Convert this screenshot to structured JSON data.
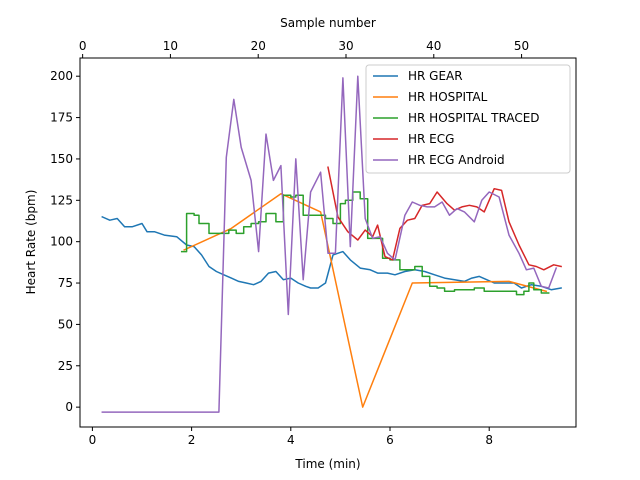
{
  "chart_data": {
    "type": "line",
    "title": "",
    "xlabel": "Time (min)",
    "ylabel": "Heart Rate (bpm)",
    "x2label": "Sample number",
    "xlim": [
      -0.25,
      9.75
    ],
    "ylim": [
      -12,
      211
    ],
    "x2lim": [
      -0.3,
      56.2
    ],
    "xticks": [
      0,
      2,
      4,
      6,
      8
    ],
    "yticks": [
      0,
      25,
      50,
      75,
      100,
      125,
      150,
      175,
      200
    ],
    "x2ticks": [
      0,
      10,
      20,
      30,
      40,
      50
    ],
    "grid": false,
    "legend_position": "top-right",
    "series": [
      {
        "name": "HR GEAR",
        "color": "#1f77b4",
        "step": false,
        "points": [
          [
            0.2,
            115
          ],
          [
            0.35,
            113
          ],
          [
            0.5,
            114
          ],
          [
            0.65,
            109
          ],
          [
            0.8,
            109
          ],
          [
            1.0,
            111
          ],
          [
            1.1,
            106
          ],
          [
            1.25,
            106
          ],
          [
            1.45,
            104
          ],
          [
            1.7,
            103
          ],
          [
            1.9,
            98
          ],
          [
            2.05,
            97
          ],
          [
            2.2,
            92
          ],
          [
            2.35,
            85
          ],
          [
            2.5,
            82
          ],
          [
            2.65,
            80
          ],
          [
            2.8,
            78
          ],
          [
            2.95,
            76
          ],
          [
            3.1,
            75
          ],
          [
            3.25,
            74
          ],
          [
            3.4,
            76
          ],
          [
            3.55,
            81
          ],
          [
            3.7,
            82
          ],
          [
            3.85,
            77
          ],
          [
            4.0,
            78
          ],
          [
            4.15,
            75
          ],
          [
            4.3,
            73
          ],
          [
            4.4,
            72
          ],
          [
            4.55,
            72
          ],
          [
            4.7,
            75
          ],
          [
            4.85,
            92
          ],
          [
            5.05,
            94
          ],
          [
            5.2,
            89
          ],
          [
            5.4,
            84
          ],
          [
            5.6,
            83
          ],
          [
            5.75,
            81
          ],
          [
            5.95,
            81
          ],
          [
            6.1,
            80
          ],
          [
            6.3,
            82
          ],
          [
            6.5,
            83
          ],
          [
            6.7,
            82
          ],
          [
            6.9,
            80
          ],
          [
            7.1,
            78
          ],
          [
            7.3,
            77
          ],
          [
            7.5,
            76
          ],
          [
            7.65,
            78
          ],
          [
            7.8,
            79
          ],
          [
            7.95,
            77
          ],
          [
            8.1,
            75
          ],
          [
            8.3,
            75
          ],
          [
            8.5,
            75
          ],
          [
            8.65,
            72
          ],
          [
            8.85,
            74
          ],
          [
            9.05,
            73
          ],
          [
            9.25,
            71
          ],
          [
            9.45,
            72
          ]
        ]
      },
      {
        "name": "HR HOSPITAL",
        "color": "#ff7f0e",
        "step": false,
        "points": [
          [
            1.85,
            95
          ],
          [
            2.8,
            108
          ],
          [
            3.8,
            129
          ],
          [
            4.6,
            118
          ],
          [
            5.45,
            0
          ],
          [
            6.45,
            75
          ],
          [
            8.4,
            76
          ],
          [
            9.15,
            70
          ]
        ]
      },
      {
        "name": "HR HOSPITAL TRACED",
        "color": "#2ca02c",
        "step": true,
        "points": [
          [
            1.8,
            94
          ],
          [
            1.9,
            117
          ],
          [
            2.05,
            116
          ],
          [
            2.15,
            111
          ],
          [
            2.35,
            105
          ],
          [
            2.55,
            105
          ],
          [
            2.75,
            107
          ],
          [
            2.9,
            105
          ],
          [
            3.05,
            109
          ],
          [
            3.2,
            111
          ],
          [
            3.35,
            112
          ],
          [
            3.5,
            117
          ],
          [
            3.7,
            112
          ],
          [
            3.85,
            128
          ],
          [
            4.0,
            127
          ],
          [
            4.1,
            128
          ],
          [
            4.25,
            116
          ],
          [
            4.4,
            116
          ],
          [
            4.55,
            116
          ],
          [
            4.7,
            114
          ],
          [
            4.85,
            111
          ],
          [
            5.0,
            123
          ],
          [
            5.1,
            125
          ],
          [
            5.25,
            130
          ],
          [
            5.4,
            126
          ],
          [
            5.55,
            102
          ],
          [
            5.7,
            102
          ],
          [
            5.85,
            90
          ],
          [
            6.0,
            89
          ],
          [
            6.2,
            83
          ],
          [
            6.35,
            83
          ],
          [
            6.5,
            85
          ],
          [
            6.65,
            79
          ],
          [
            6.8,
            73
          ],
          [
            6.95,
            72
          ],
          [
            7.1,
            70
          ],
          [
            7.3,
            71
          ],
          [
            7.5,
            71
          ],
          [
            7.7,
            72
          ],
          [
            7.9,
            70
          ],
          [
            8.1,
            70
          ],
          [
            8.3,
            70
          ],
          [
            8.5,
            70
          ],
          [
            8.55,
            68
          ],
          [
            8.7,
            70
          ],
          [
            8.8,
            75
          ],
          [
            8.9,
            71
          ],
          [
            9.05,
            69
          ],
          [
            9.2,
            69
          ]
        ]
      },
      {
        "name": "HR ECG",
        "color": "#d62728",
        "step": false,
        "points": [
          [
            4.75,
            145
          ],
          [
            4.95,
            115
          ],
          [
            5.15,
            106
          ],
          [
            5.35,
            101
          ],
          [
            5.5,
            107
          ],
          [
            5.65,
            103
          ],
          [
            5.75,
            110
          ],
          [
            5.9,
            91
          ],
          [
            6.05,
            89
          ],
          [
            6.2,
            108
          ],
          [
            6.35,
            113
          ],
          [
            6.5,
            114
          ],
          [
            6.65,
            122
          ],
          [
            6.8,
            123
          ],
          [
            6.95,
            130
          ],
          [
            7.15,
            123
          ],
          [
            7.3,
            119
          ],
          [
            7.45,
            121
          ],
          [
            7.6,
            122
          ],
          [
            7.75,
            121
          ],
          [
            7.9,
            118
          ],
          [
            8.1,
            132
          ],
          [
            8.25,
            131
          ],
          [
            8.4,
            112
          ],
          [
            8.6,
            98
          ],
          [
            8.8,
            86
          ],
          [
            8.95,
            85
          ],
          [
            9.1,
            83
          ],
          [
            9.3,
            86
          ],
          [
            9.45,
            85
          ]
        ]
      },
      {
        "name": "HR ECG Android",
        "color": "#9467bd",
        "step": false,
        "points": [
          [
            0.2,
            -3
          ],
          [
            0.8,
            -3
          ],
          [
            1.4,
            -3
          ],
          [
            2.0,
            -3
          ],
          [
            2.55,
            -3
          ],
          [
            2.7,
            151
          ],
          [
            2.85,
            186
          ],
          [
            3.0,
            157
          ],
          [
            3.2,
            137
          ],
          [
            3.35,
            94
          ],
          [
            3.5,
            165
          ],
          [
            3.65,
            137
          ],
          [
            3.8,
            146
          ],
          [
            3.95,
            56
          ],
          [
            4.1,
            150
          ],
          [
            4.25,
            77
          ],
          [
            4.4,
            130
          ],
          [
            4.6,
            142
          ],
          [
            4.75,
            93
          ],
          [
            4.9,
            93
          ],
          [
            5.05,
            199
          ],
          [
            5.2,
            97
          ],
          [
            5.35,
            200
          ],
          [
            5.5,
            114
          ],
          [
            5.65,
            102
          ],
          [
            5.8,
            103
          ],
          [
            5.95,
            93
          ],
          [
            6.1,
            89
          ],
          [
            6.3,
            116
          ],
          [
            6.45,
            124
          ],
          [
            6.6,
            122
          ],
          [
            6.75,
            121
          ],
          [
            6.9,
            121
          ],
          [
            7.05,
            124
          ],
          [
            7.2,
            116
          ],
          [
            7.35,
            120
          ],
          [
            7.5,
            118
          ],
          [
            7.7,
            112
          ],
          [
            7.85,
            125
          ],
          [
            8.0,
            130
          ],
          [
            8.2,
            127
          ],
          [
            8.4,
            104
          ],
          [
            8.6,
            93
          ],
          [
            8.75,
            83
          ],
          [
            8.9,
            84
          ],
          [
            9.05,
            73
          ],
          [
            9.2,
            72
          ],
          [
            9.35,
            84
          ]
        ]
      }
    ]
  }
}
